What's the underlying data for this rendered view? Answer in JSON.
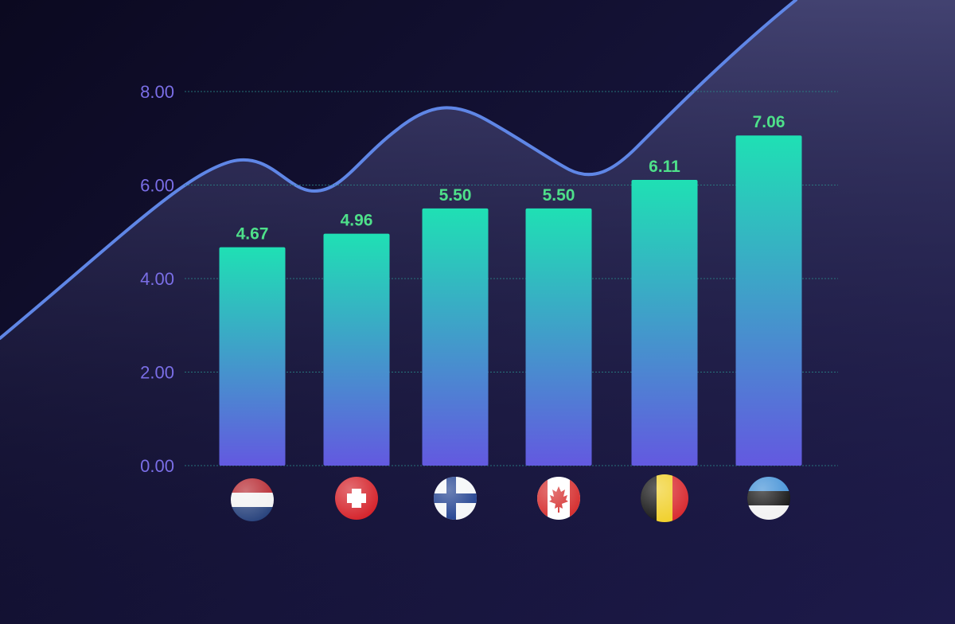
{
  "chart_data": {
    "type": "bar",
    "categories": [
      "Netherlands",
      "Switzerland",
      "Finland",
      "Canada",
      "Belgium",
      "Estonia"
    ],
    "values": [
      4.67,
      4.96,
      5.5,
      5.5,
      6.11,
      7.06
    ],
    "value_labels": [
      "4.67",
      "4.96",
      "5.50",
      "5.50",
      "6.11",
      "7.06"
    ],
    "ylim": [
      0,
      8
    ],
    "yticks": [
      "0.00",
      "2.00",
      "4.00",
      "6.00",
      "8.00"
    ],
    "grid": true,
    "category_markers": "flag icons",
    "decoration": "smooth trend curve behind bars"
  },
  "colors": {
    "bar_top": "#1fe0b4",
    "bar_bottom": "#6359e0",
    "value_label": "#4ee08a",
    "tick_label": "#7a6ee6",
    "gridline": "#2a8a8a",
    "trend_line": "#5f86e6",
    "background": "#120f30"
  },
  "icons": [
    "netherlands-flag-icon",
    "switzerland-flag-icon",
    "finland-flag-icon",
    "canada-flag-icon",
    "belgium-flag-icon",
    "estonia-flag-icon"
  ]
}
